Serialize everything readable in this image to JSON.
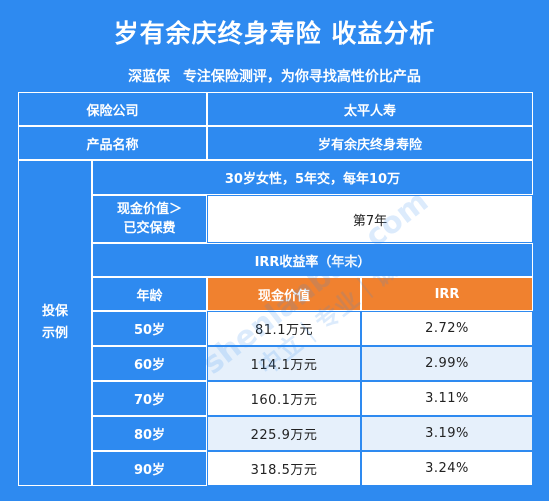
{
  "header": {
    "title": "岁有余庆终身寿险 收益分析",
    "brand": "深蓝保",
    "tagline": "专注保险测评，为你寻找高性价比产品"
  },
  "info": {
    "company_label": "保险公司",
    "company_value": "太平人寿",
    "product_label": "产品名称",
    "product_value": "岁有余庆终身寿险"
  },
  "example": {
    "side_label": "投保\n示例",
    "plan": "30岁女性，5年交，每年10万",
    "cash_paid_label_line1": "现金价值＞",
    "cash_paid_label_line2": "已交保费",
    "cash_paid_value": "第7年",
    "irr_title": "IRR收益率（年末）",
    "columns": [
      "年龄",
      "现金价值",
      "IRR"
    ],
    "rows": [
      {
        "age": "50岁",
        "cash": "81.1万元",
        "irr": "2.72%"
      },
      {
        "age": "60岁",
        "cash": "114.1万元",
        "irr": "2.99%"
      },
      {
        "age": "70岁",
        "cash": "160.1万元",
        "irr": "3.11%"
      },
      {
        "age": "80岁",
        "cash": "225.9万元",
        "irr": "3.19%"
      },
      {
        "age": "90岁",
        "cash": "318.5万元",
        "irr": "3.24%"
      }
    ]
  },
  "watermark": {
    "site": "shenlanbao.com",
    "slogan": "中立｜专业｜诚信"
  }
}
